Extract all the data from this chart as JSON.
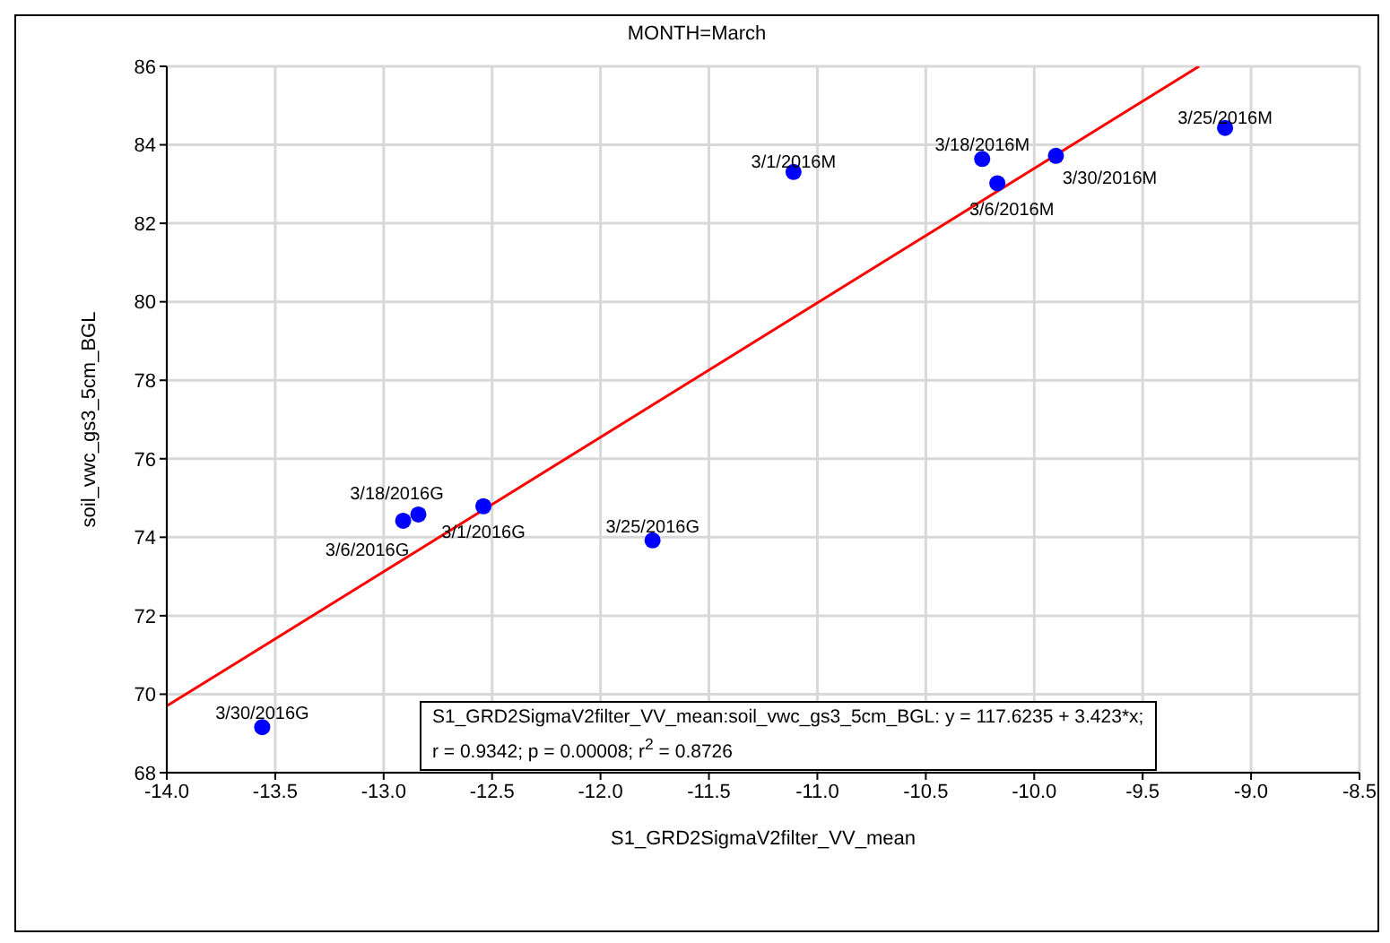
{
  "chart_data": {
    "type": "scatter",
    "title": "MONTH=March",
    "xlabel": "S1_GRD2SigmaV2filter_VV_mean",
    "ylabel": "soil_vwc_gs3_5cm_BGL",
    "series": [
      {
        "color": "#0000ff",
        "marker": "circle",
        "x": [
          -11.11,
          -10.24,
          -10.17,
          -9.9,
          -9.12,
          -12.91,
          -12.84,
          -12.54,
          -11.76,
          -13.56
        ],
        "values": [
          83.31,
          83.64,
          83.02,
          83.72,
          84.43,
          74.42,
          74.58,
          74.79,
          73.92,
          69.16
        ]
      },
      {
        "type": "line",
        "color": "#ff0000",
        "marker": "none",
        "x": [
          -14,
          -9.24
        ],
        "values": [
          69.7,
          86.0
        ]
      }
    ],
    "xlim": [
      -14,
      -8.5
    ],
    "xticks": [
      {
        "value": -14,
        "label": "-14.0"
      },
      {
        "value": -13.5,
        "label": "-13.5"
      },
      {
        "value": -13,
        "label": "-13.0"
      },
      {
        "value": -12.5,
        "label": "-12.5"
      },
      {
        "value": -12,
        "label": "-12.0"
      },
      {
        "value": -11.5,
        "label": "-11.5"
      },
      {
        "value": -11,
        "label": "-11.0"
      },
      {
        "value": -10.5,
        "label": "-10.5"
      },
      {
        "value": -10,
        "label": "-10.0"
      },
      {
        "value": -9.5,
        "label": "-9.5"
      },
      {
        "value": -9,
        "label": "-9.0"
      },
      {
        "value": -8.5,
        "label": "-8.5"
      }
    ],
    "ylim": [
      68,
      86
    ],
    "yticks": [
      68,
      70,
      72,
      74,
      76,
      78,
      80,
      82,
      84,
      86
    ],
    "grid": true,
    "legend": false,
    "annotations": [
      {
        "text": "3/1/2016M",
        "x": -11.11,
        "y": 83.31
      },
      {
        "text": "3/18/2016M",
        "x": -10.24,
        "y": 83.64
      },
      {
        "text": "3/6/2016M",
        "x": -10.17,
        "y": 83.02
      },
      {
        "text": "3/30/2016M",
        "x": -9.9,
        "y": 83.72
      },
      {
        "text": "3/25/2016M",
        "x": -9.12,
        "y": 84.43
      },
      {
        "text": "3/6/2016G",
        "x": -12.91,
        "y": 74.42
      },
      {
        "text": "3/18/2016G",
        "x": -12.84,
        "y": 74.58
      },
      {
        "text": "3/1/2016G",
        "x": -12.54,
        "y": 74.79
      },
      {
        "text": "3/25/2016G",
        "x": -11.76,
        "y": 73.92
      },
      {
        "text": "3/30/2016G",
        "x": -13.56,
        "y": 69.16
      },
      "S1_GRD2SigmaV2filter_VV_mean:soil_vwc_gs3_5cm_BGL:   y = 117.6235 + 3.423*x;",
      "r = 0.9342; p = 0.00008; r$^{2}$ = 0.8726"
    ]
  }
}
